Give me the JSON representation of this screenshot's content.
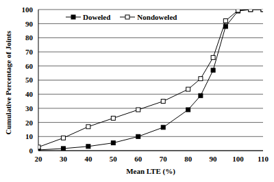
{
  "chart_data": {
    "type": "line",
    "x_label": "Mean LTE (%)",
    "y_label": "Cumulative Percentage of Joints",
    "x": [
      20,
      30,
      40,
      50,
      60,
      70,
      80,
      85,
      90,
      95,
      100,
      105,
      110
    ],
    "series": [
      {
        "name": "Doweled",
        "color": "#000000",
        "marker": "square",
        "line_style": "solid",
        "values": [
          0.5,
          1.5,
          3,
          5.5,
          10,
          16.5,
          29,
          39,
          57,
          88,
          99,
          100,
          100
        ]
      },
      {
        "name": "Nondoweled",
        "color": "#000000",
        "marker": "square_open",
        "line_style": "solid",
        "values": [
          2.5,
          9,
          17,
          23,
          29,
          35,
          43.5,
          51,
          66,
          92,
          99.5,
          100,
          100
        ]
      }
    ],
    "xlim": [
      20,
      110
    ],
    "xticks": [
      20,
      30,
      40,
      50,
      60,
      70,
      80,
      90,
      100,
      110
    ],
    "ylim": [
      0,
      100
    ],
    "yticks": [
      0,
      10,
      20,
      30,
      40,
      50,
      60,
      70,
      80,
      90,
      100
    ],
    "grid": true,
    "legend": "upper left"
  }
}
